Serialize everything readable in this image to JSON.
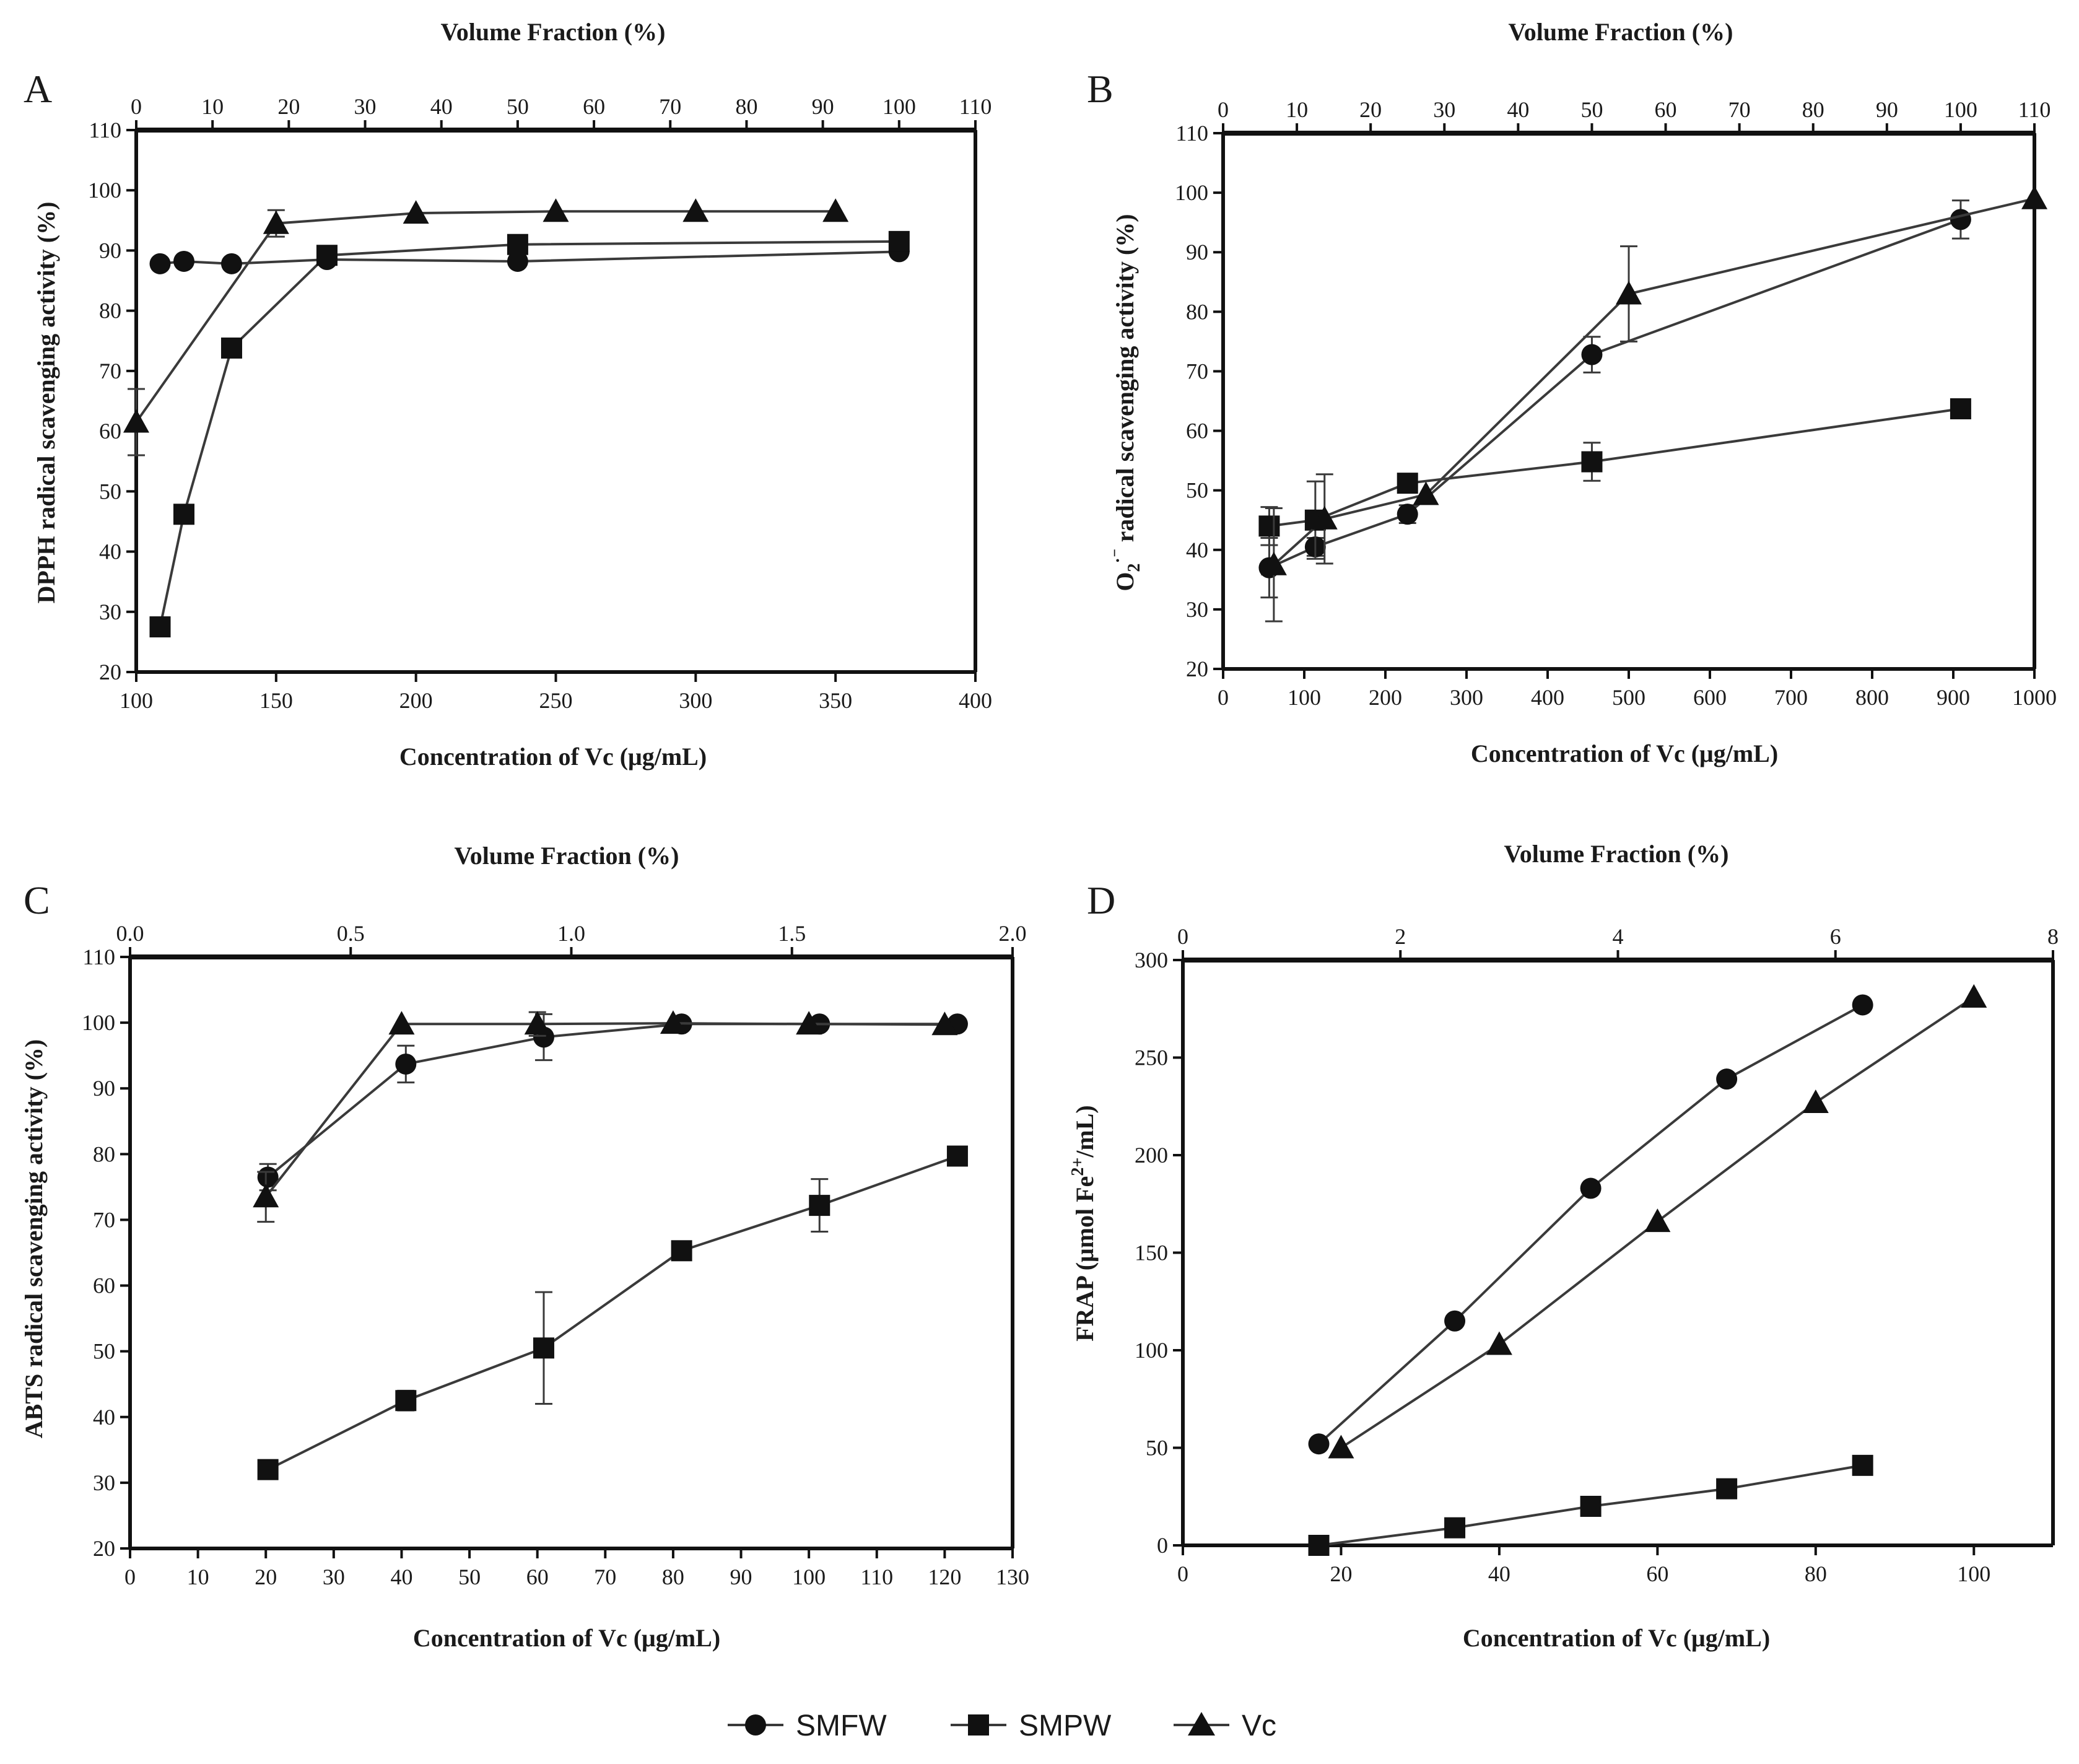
{
  "legend": [
    {
      "name": "SMFW",
      "marker": "circle"
    },
    {
      "name": "SMPW",
      "marker": "square"
    },
    {
      "name": "Vc",
      "marker": "triangle"
    }
  ],
  "colors": {
    "line": "#3a3a3a",
    "marker": "#111111",
    "axis": "#111111"
  },
  "chart_data": [
    {
      "panel": "A",
      "type": "line",
      "ylabel": "DPPH radical scavenging activity (%)",
      "xlabel": "Concentration of Vc (μg/mL)",
      "top_label": "Volume Fraction (%)",
      "xlim": [
        100,
        400
      ],
      "ylim": [
        20,
        110
      ],
      "top_lim": [
        0,
        110
      ],
      "x_ticks": [
        "100",
        "150",
        "200",
        "250",
        "300",
        "350",
        "400"
      ],
      "y_ticks": [
        "20",
        "30",
        "40",
        "50",
        "60",
        "70",
        "80",
        "90",
        "100",
        "110"
      ],
      "top_ticks": [
        "0",
        "10",
        "20",
        "30",
        "40",
        "50",
        "60",
        "70",
        "80",
        "90",
        "100",
        "110"
      ],
      "series": [
        {
          "name": "SMFW",
          "axis": "top",
          "x": [
            3.125,
            6.25,
            12.5,
            25,
            50,
            100
          ],
          "y": [
            87.8,
            88.2,
            87.8,
            88.5,
            88.2,
            89.8
          ],
          "err": [
            0,
            0,
            0,
            0,
            0,
            0
          ]
        },
        {
          "name": "SMPW",
          "axis": "top",
          "x": [
            3.125,
            6.25,
            12.5,
            25,
            50,
            100
          ],
          "y": [
            27.5,
            46.2,
            73.8,
            89.2,
            91.0,
            91.5
          ],
          "err": [
            0,
            0,
            0,
            0,
            0,
            0
          ]
        },
        {
          "name": "Vc",
          "axis": "bottom",
          "x": [
            100,
            150,
            200,
            250,
            300,
            350
          ],
          "y": [
            61.5,
            94.5,
            96.2,
            96.5,
            96.5,
            96.5
          ],
          "err": [
            5.5,
            2.2,
            0,
            0,
            0,
            0
          ]
        }
      ]
    },
    {
      "panel": "B",
      "type": "line",
      "ylabel": "O2·⁻ radical scavenging activity (%)",
      "xlabel": "Concentration of Vc (μg/mL)",
      "top_label": "Volume Fraction (%)",
      "xlim": [
        0,
        1000
      ],
      "ylim": [
        20,
        110
      ],
      "top_lim": [
        0,
        110
      ],
      "x_ticks": [
        "0",
        "100",
        "200",
        "300",
        "400",
        "500",
        "600",
        "700",
        "800",
        "900",
        "1000"
      ],
      "y_ticks": [
        "20",
        "30",
        "40",
        "50",
        "60",
        "70",
        "80",
        "90",
        "100",
        "110"
      ],
      "top_ticks": [
        "0",
        "10",
        "20",
        "30",
        "40",
        "50",
        "60",
        "70",
        "80",
        "90",
        "100",
        "110"
      ],
      "series": [
        {
          "name": "SMFW",
          "axis": "top",
          "x": [
            6.25,
            12.5,
            25,
            50,
            100
          ],
          "y": [
            37.0,
            40.5,
            46.0,
            72.8,
            95.5
          ],
          "err": [
            5.0,
            1.5,
            1.5,
            3.0,
            3.2
          ]
        },
        {
          "name": "SMPW",
          "axis": "top",
          "x": [
            6.25,
            12.5,
            25,
            50,
            100
          ],
          "y": [
            44.0,
            45.0,
            51.2,
            54.8,
            63.7
          ],
          "err": [
            3.2,
            6.5,
            0,
            3.2,
            0
          ]
        },
        {
          "name": "Vc",
          "axis": "bottom",
          "x": [
            62.5,
            125,
            250,
            500,
            1000
          ],
          "y": [
            37.5,
            45.2,
            49.3,
            83.0,
            99.0
          ],
          "err": [
            9.5,
            7.5,
            0,
            8.0,
            0
          ]
        }
      ]
    },
    {
      "panel": "C",
      "type": "line",
      "ylabel": "ABTS radical scavenging activity (%)",
      "xlabel": "Concentration of Vc (μg/mL)",
      "top_label": "Volume Fraction (%)",
      "xlim": [
        0,
        130
      ],
      "ylim": [
        20,
        110
      ],
      "top_lim": [
        0,
        2
      ],
      "x_ticks": [
        "0",
        "10",
        "20",
        "30",
        "40",
        "50",
        "60",
        "70",
        "80",
        "90",
        "100",
        "110",
        "120",
        "130"
      ],
      "y_ticks": [
        "20",
        "30",
        "40",
        "50",
        "60",
        "70",
        "80",
        "90",
        "100",
        "110"
      ],
      "top_ticks": [
        "0.0",
        "0.5",
        "1.0",
        "1.5",
        "2.0"
      ],
      "series": [
        {
          "name": "SMFW",
          "axis": "top",
          "x": [
            0.3125,
            0.625,
            0.9375,
            1.25,
            1.5625,
            1.875
          ],
          "y": [
            76.5,
            93.7,
            97.8,
            99.8,
            99.8,
            99.8
          ],
          "err": [
            2.0,
            2.8,
            3.5,
            0,
            0,
            0
          ]
        },
        {
          "name": "SMPW",
          "axis": "top",
          "x": [
            0.3125,
            0.625,
            0.9375,
            1.25,
            1.5625,
            1.875
          ],
          "y": [
            32.0,
            42.5,
            50.5,
            65.3,
            72.2,
            79.7
          ],
          "err": [
            0,
            1.5,
            8.5,
            0,
            4.0,
            0
          ]
        },
        {
          "name": "Vc",
          "axis": "bottom",
          "x": [
            20,
            40,
            60,
            80,
            100,
            120
          ],
          "y": [
            73.5,
            99.8,
            99.8,
            99.9,
            99.8,
            99.7
          ],
          "err": [
            3.8,
            0,
            1.8,
            0,
            0,
            0
          ]
        }
      ]
    },
    {
      "panel": "D",
      "type": "line",
      "ylabel": "FRAP (μmol Fe2+/mL)",
      "xlabel": "Concentration of Vc (μg/mL)",
      "top_label": "Volume Fraction (%)",
      "xlim": [
        0,
        110
      ],
      "ylim": [
        0,
        300
      ],
      "top_lim": [
        0,
        8
      ],
      "x_ticks": [
        "0",
        "20",
        "40",
        "60",
        "80",
        "100"
      ],
      "y_ticks": [
        "0",
        "50",
        "100",
        "150",
        "200",
        "250",
        "300"
      ],
      "top_ticks": [
        "0",
        "2",
        "4",
        "6",
        "8"
      ],
      "series": [
        {
          "name": "SMFW",
          "axis": "top",
          "x": [
            1.25,
            2.5,
            3.75,
            5.0,
            6.25
          ],
          "y": [
            52,
            115,
            183,
            239,
            277
          ],
          "err": [
            0,
            0,
            0,
            0,
            0
          ]
        },
        {
          "name": "SMPW",
          "axis": "top",
          "x": [
            1.25,
            2.5,
            3.75,
            5.0,
            6.25
          ],
          "y": [
            0,
            9,
            20,
            29,
            41
          ],
          "err": [
            0,
            0,
            0,
            0,
            0
          ]
        },
        {
          "name": "Vc",
          "axis": "bottom",
          "x": [
            20,
            40,
            60,
            80,
            100
          ],
          "y": [
            50,
            103,
            166,
            227,
            281
          ],
          "err": [
            0,
            0,
            0,
            0,
            0
          ]
        }
      ]
    }
  ]
}
